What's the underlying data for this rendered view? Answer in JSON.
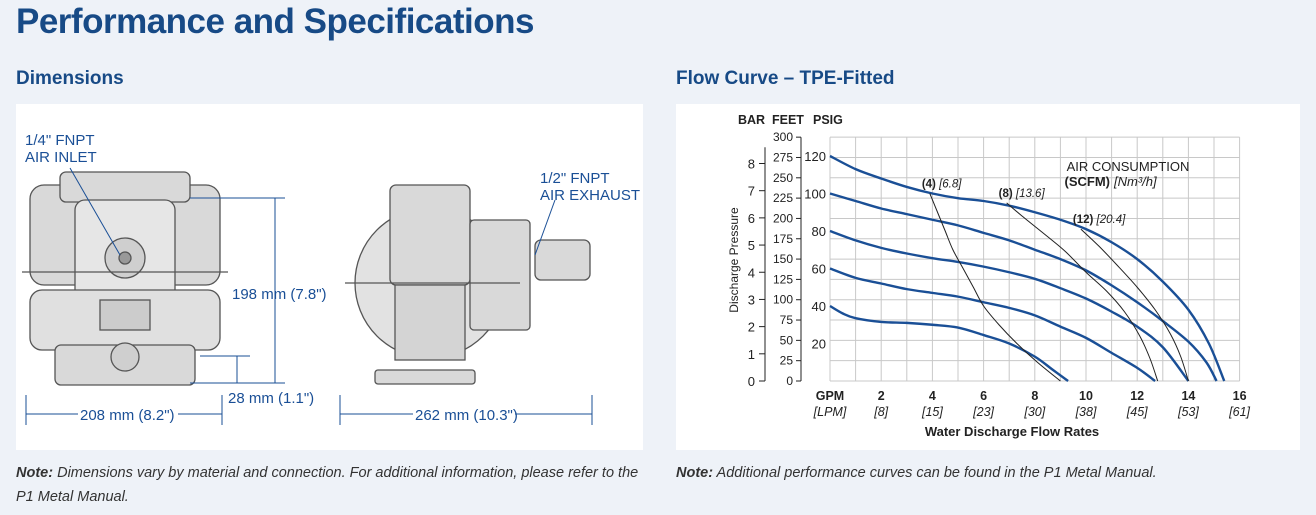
{
  "page_title": "Performance and Specifications",
  "dimensions": {
    "heading": "Dimensions",
    "air_inlet": [
      "1/4\" FNPT",
      "AIR INLET"
    ],
    "air_exhaust": [
      "1/2\" FNPT",
      "AIR EXHAUST"
    ],
    "height": "198 mm (7.8\")",
    "base_height": "28 mm (1.1\")",
    "width": "208 mm (8.2\")",
    "depth": "262 mm (10.3\")",
    "note_label": "Note:",
    "note_text": " Dimensions vary by material and connection. For additional information, please refer to the P1 Metal Manual."
  },
  "flow": {
    "heading": "Flow Curve – TPE-Fitted",
    "note_label": "Note:",
    "note_text": " Additional performance curves can be found in the P1 Metal Manual."
  },
  "chart_data": {
    "type": "line",
    "title": "Flow Curve – TPE-Fitted",
    "xlabel": "Water Discharge Flow Rates",
    "ylabel": "Discharge Pressure",
    "x_unit_label": "GPM",
    "x_unit_label_alt": "[LPM]",
    "xlim": [
      0,
      16
    ],
    "ylim_psig": [
      0,
      130
    ],
    "x_ticks": [
      {
        "gpm": 2,
        "lpm": "[8]"
      },
      {
        "gpm": 4,
        "lpm": "[15]"
      },
      {
        "gpm": 6,
        "lpm": "[23]"
      },
      {
        "gpm": 8,
        "lpm": "[30]"
      },
      {
        "gpm": 10,
        "lpm": "[38]"
      },
      {
        "gpm": 12,
        "lpm": "[45]"
      },
      {
        "gpm": 14,
        "lpm": "[53]"
      },
      {
        "gpm": 16,
        "lpm": "[61]"
      }
    ],
    "axes": {
      "bar": {
        "label": "BAR",
        "ticks": [
          0,
          1,
          2,
          3,
          4,
          5,
          6,
          7,
          8
        ]
      },
      "feet": {
        "label": "FEET",
        "ticks": [
          0,
          25,
          50,
          75,
          100,
          125,
          150,
          175,
          200,
          225,
          250,
          275,
          300
        ]
      },
      "psig": {
        "label": "PSIG",
        "ticks": [
          20,
          40,
          60,
          80,
          100,
          120
        ]
      }
    },
    "air_consumption_title": "AIR CONSUMPTION",
    "air_consumption_units_bold": "(SCFM)",
    "air_consumption_units": "[Nm³/h]",
    "pressure_series": [
      {
        "name": "120 psig air",
        "points": [
          [
            0,
            120
          ],
          [
            1,
            113
          ],
          [
            2,
            108
          ],
          [
            3,
            103.5
          ],
          [
            4,
            100
          ],
          [
            5,
            97.5
          ],
          [
            6,
            96
          ],
          [
            7,
            93.5
          ],
          [
            8,
            90
          ],
          [
            9,
            86
          ],
          [
            10,
            81
          ],
          [
            11,
            74
          ],
          [
            12,
            65
          ],
          [
            13,
            53
          ],
          [
            14,
            38
          ],
          [
            14.8,
            20
          ],
          [
            15.4,
            0
          ]
        ]
      },
      {
        "name": "100 psig air",
        "points": [
          [
            0,
            100
          ],
          [
            1,
            96
          ],
          [
            2,
            92
          ],
          [
            3,
            89
          ],
          [
            4,
            86
          ],
          [
            5,
            83
          ],
          [
            6,
            79
          ],
          [
            7,
            75
          ],
          [
            8,
            70
          ],
          [
            9,
            65
          ],
          [
            10,
            59
          ],
          [
            11,
            51
          ],
          [
            12,
            42
          ],
          [
            13,
            32
          ],
          [
            14,
            21
          ],
          [
            14.7,
            10
          ],
          [
            15.1,
            0
          ]
        ]
      },
      {
        "name": "80 psig air",
        "points": [
          [
            0,
            80
          ],
          [
            1,
            75
          ],
          [
            2,
            71
          ],
          [
            3,
            68
          ],
          [
            4,
            65.5
          ],
          [
            5,
            63.5
          ],
          [
            6,
            61
          ],
          [
            7,
            58
          ],
          [
            8,
            54.5
          ],
          [
            9,
            49.5
          ],
          [
            10,
            44
          ],
          [
            11,
            37
          ],
          [
            12,
            29
          ],
          [
            13,
            18
          ],
          [
            14,
            0
          ]
        ]
      },
      {
        "name": "60 psig air",
        "points": [
          [
            0,
            60
          ],
          [
            1,
            55
          ],
          [
            2,
            52
          ],
          [
            3,
            49
          ],
          [
            4,
            47
          ],
          [
            5,
            45
          ],
          [
            6,
            42
          ],
          [
            7,
            39
          ],
          [
            8,
            35
          ],
          [
            9,
            29
          ],
          [
            10,
            23
          ],
          [
            11,
            15
          ],
          [
            12,
            7
          ],
          [
            12.7,
            0
          ]
        ]
      },
      {
        "name": "40 psig air",
        "points": [
          [
            0,
            40
          ],
          [
            0.5,
            36
          ],
          [
            1,
            33.5
          ],
          [
            2,
            31.5
          ],
          [
            3,
            31
          ],
          [
            4,
            30
          ],
          [
            5,
            28.5
          ],
          [
            6,
            24.5
          ],
          [
            7,
            20
          ],
          [
            8,
            13
          ],
          [
            8.7,
            6
          ],
          [
            9.3,
            0
          ]
        ]
      }
    ],
    "air_series": [
      {
        "label": "(4)",
        "label_alt": "[6.8]",
        "points": [
          [
            3.9,
            100
          ],
          [
            4.2,
            90
          ],
          [
            4.5,
            80
          ],
          [
            4.8,
            70
          ],
          [
            5.2,
            60
          ],
          [
            5.6,
            50
          ],
          [
            6,
            40
          ],
          [
            6.6,
            30
          ],
          [
            7.3,
            20
          ],
          [
            8.1,
            10
          ],
          [
            9,
            0
          ]
        ]
      },
      {
        "label": "(8)",
        "label_alt": "[13.6]",
        "points": [
          [
            6.9,
            95
          ],
          [
            7.5,
            88
          ],
          [
            8.5,
            77
          ],
          [
            9.2,
            69
          ],
          [
            10,
            58
          ],
          [
            10.8,
            48
          ],
          [
            11.5,
            37
          ],
          [
            12.1,
            24
          ],
          [
            12.5,
            12
          ],
          [
            12.8,
            0
          ]
        ]
      },
      {
        "label": "(12)",
        "label_alt": "[20.4]",
        "points": [
          [
            9.8,
            81
          ],
          [
            10.5,
            72
          ],
          [
            11.2,
            62
          ],
          [
            12,
            50
          ],
          [
            12.7,
            38
          ],
          [
            13.3,
            25
          ],
          [
            13.7,
            13
          ],
          [
            14,
            0
          ]
        ]
      }
    ]
  },
  "colors": {
    "title": "#174a86",
    "curve": "#1a4f96",
    "air_line": "#222222",
    "grid": "#c8c8c8"
  }
}
